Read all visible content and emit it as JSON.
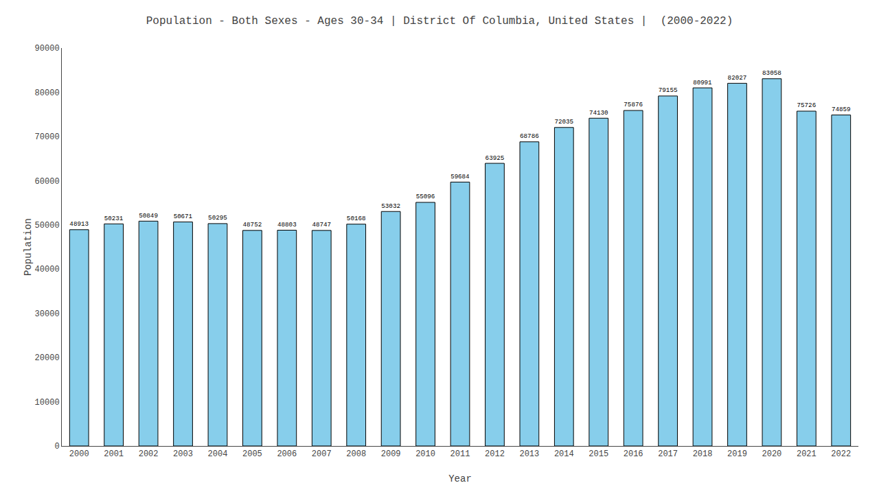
{
  "chart_data": {
    "type": "bar",
    "title": "Population - Both Sexes - Ages 30-34 | District Of Columbia, United States |  (2000-2022)",
    "x_label": "Year",
    "y_label": "Population",
    "categories": [
      "2000",
      "2001",
      "2002",
      "2003",
      "2004",
      "2005",
      "2006",
      "2007",
      "2008",
      "2009",
      "2010",
      "2011",
      "2012",
      "2013",
      "2014",
      "2015",
      "2016",
      "2017",
      "2018",
      "2019",
      "2020",
      "2021",
      "2022"
    ],
    "values": [
      48913,
      50231,
      50849,
      50671,
      50295,
      48752,
      48803,
      48747,
      50168,
      53032,
      55096,
      59684,
      63925,
      68786,
      72035,
      74130,
      75876,
      79155,
      80991,
      82027,
      83058,
      75726,
      74859
    ],
    "color": "#87ceeb",
    "ylim": [
      0,
      90000
    ],
    "yticks": [
      0,
      10000,
      20000,
      30000,
      40000,
      50000,
      60000,
      70000,
      80000,
      90000
    ],
    "grid": false,
    "data_labels": true
  }
}
